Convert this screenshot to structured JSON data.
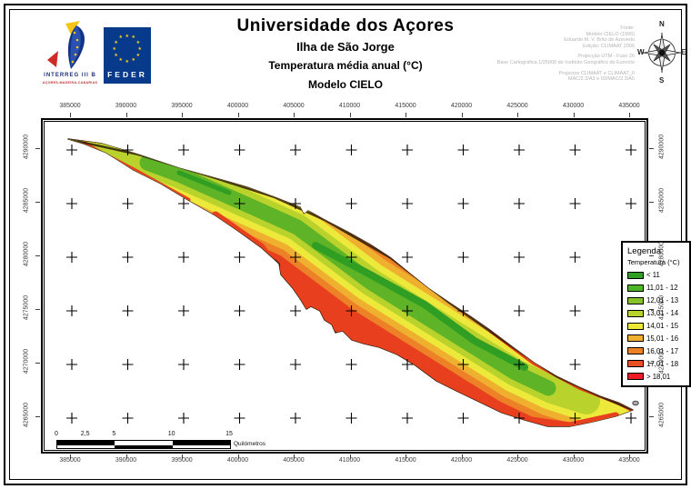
{
  "page": {
    "title1": "Universidade dos Açores",
    "title2": "Ilha de São Jorge",
    "title3": "Temperatura média anual (°C)",
    "title4": "Modelo CIELO"
  },
  "logos": {
    "interreg_label": "INTERREG III B",
    "interreg_sub": "AÇORES-MADEIRA-CANARIAS",
    "feder_label": "FEDER"
  },
  "credits": {
    "lines": [
      "Fonte:",
      "Modelo CIELO (1996)",
      "Eduardo M. V. Brito de Azevedo",
      "Edição: CLIMAAT 2005",
      "",
      "Projecção UTM - Fuso 26",
      "Base Cartográfica 1/25000 do Instituto Geográfico do Exército",
      "",
      "Projectos CLIMAAT e CLIMAAT_II",
      "MAC/2.3/A3 e 03/MAC/2.3/A5"
    ]
  },
  "compass": {
    "n": "N",
    "s": "S",
    "e": "E",
    "w": "W"
  },
  "map": {
    "x_ticks": [
      "385000",
      "390000",
      "395000",
      "400000",
      "405000",
      "410000",
      "415000",
      "420000",
      "425000",
      "430000",
      "435000"
    ],
    "y_ticks": [
      "4290000",
      "4285000",
      "4280000",
      "4275000",
      "4270000",
      "4265000"
    ]
  },
  "legend": {
    "title": "Legenda:",
    "subtitle": "Temperatura (°C)",
    "classes": [
      {
        "label": "< 11",
        "color": "#2F9E23"
      },
      {
        "label": "11,01 - 12",
        "color": "#4EB428"
      },
      {
        "label": "12,01 - 13",
        "color": "#86C228"
      },
      {
        "label": "13,01 - 14",
        "color": "#B9D32C"
      },
      {
        "label": "14,01 - 15",
        "color": "#EDE93B"
      },
      {
        "label": "15,01 - 16",
        "color": "#F0B02F"
      },
      {
        "label": "16,01 - 17",
        "color": "#EC8127"
      },
      {
        "label": "17,01 - 18",
        "color": "#E85123"
      },
      {
        "label": "> 18,01",
        "color": "#ED1C24"
      }
    ]
  },
  "scalebar": {
    "labels": [
      "0",
      "2,5",
      "5",
      "10",
      "15"
    ],
    "km": [
      0,
      2.5,
      5,
      10,
      15
    ],
    "unit": "Quilómetros"
  },
  "island": {
    "coast_dark": "#2b1a0c",
    "red": "#E8401F",
    "orange": "#EC8127",
    "amber": "#F0B02F",
    "yellow": "#EDE93B",
    "yellowgreen": "#B9D32C",
    "green": "#5FB326",
    "darkgreen": "#2F9E23",
    "islet": "#ABABAB"
  }
}
